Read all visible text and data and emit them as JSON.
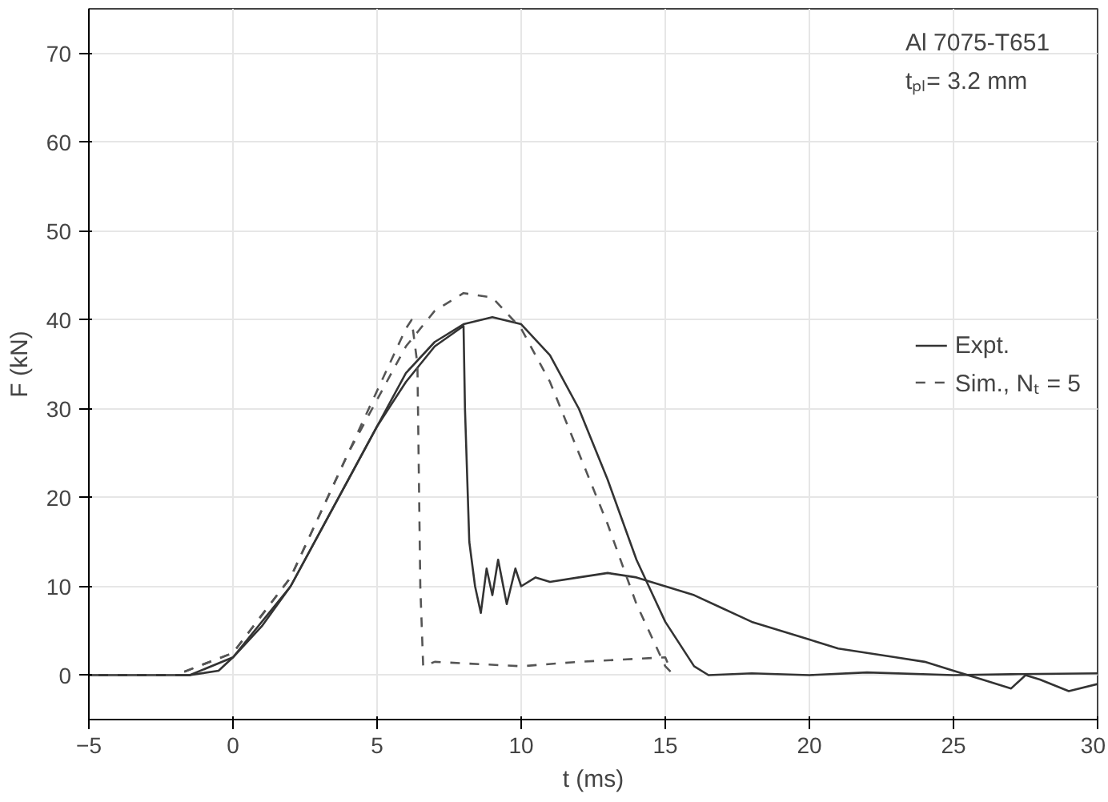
{
  "chart_data": {
    "type": "line",
    "xlabel": "t (ms)",
    "ylabel": "F (kN)",
    "xlim": [
      -5,
      30
    ],
    "ylim": [
      -5,
      75
    ],
    "xticks": [
      -5,
      0,
      5,
      10,
      15,
      20,
      25,
      30
    ],
    "yticks": [
      0,
      10,
      20,
      30,
      40,
      50,
      60,
      70
    ],
    "grid": true,
    "legend": "right",
    "marker": "none",
    "annotations": [
      "Al 7075-T651",
      "tₚₗ= 3.2 mm"
    ],
    "series": [
      {
        "name": "Expt.",
        "color": "#333333",
        "line_style": "solid",
        "x": [
          -5,
          -3,
          -1.5,
          -0.5,
          0,
          1,
          2,
          3,
          4,
          5,
          6,
          7,
          8,
          8.05,
          8.2,
          8.4,
          8.6,
          8.8,
          9,
          9.2,
          9.5,
          9.8,
          10,
          10.5,
          11,
          12,
          13,
          14,
          15,
          16,
          17,
          18,
          19,
          20,
          21,
          22,
          23,
          24,
          25,
          26,
          27,
          27.5,
          28,
          29,
          30
        ],
        "values": [
          0,
          0,
          0,
          0.5,
          2,
          5.5,
          10,
          16,
          22,
          28,
          33,
          37,
          39.3,
          30,
          15,
          10,
          7,
          12,
          9,
          13,
          8,
          12,
          10,
          11,
          10.5,
          11,
          11.5,
          11,
          10,
          9,
          7.5,
          6,
          5,
          4,
          3,
          2.5,
          2,
          1.5,
          0.5,
          -0.5,
          -1.5,
          0,
          -0.5,
          -1.8,
          -1
        ]
      },
      {
        "color": "#333333",
        "line_style": "solid",
        "x": [
          -5,
          -3,
          -1.5,
          0,
          2,
          4,
          6,
          7,
          8,
          9,
          10,
          11,
          12,
          13,
          14,
          15,
          16,
          16.5,
          18,
          20,
          22,
          25,
          27,
          30
        ],
        "values": [
          0,
          0,
          0,
          2,
          10,
          22,
          34,
          37.5,
          39.5,
          40.3,
          39.5,
          36,
          30,
          22,
          13,
          6,
          1,
          0,
          0.2,
          0,
          0.3,
          0,
          0.1,
          0.2
        ]
      },
      {
        "name": "Sim., Nₜ = 5",
        "color": "#555555",
        "line_style": "dashed",
        "x": [
          -5,
          -2,
          0,
          2,
          4,
          5,
          6,
          6.2,
          6.4,
          6.5,
          6.6,
          7,
          10,
          12,
          15,
          15.2
        ],
        "values": [
          0,
          0,
          2.5,
          11,
          25,
          32,
          39,
          40,
          35,
          10,
          1,
          1.5,
          1,
          1.5,
          2,
          0.5
        ]
      },
      {
        "color": "#555555",
        "line_style": "dashed",
        "x": [
          -5,
          -2,
          0,
          2,
          4,
          6,
          7,
          8,
          9,
          10,
          11,
          12,
          13,
          14,
          15,
          15.3
        ],
        "values": [
          0,
          0,
          2.5,
          11,
          25,
          37,
          41,
          43,
          42.5,
          39,
          33,
          25,
          17,
          8,
          1,
          0
        ]
      }
    ]
  }
}
